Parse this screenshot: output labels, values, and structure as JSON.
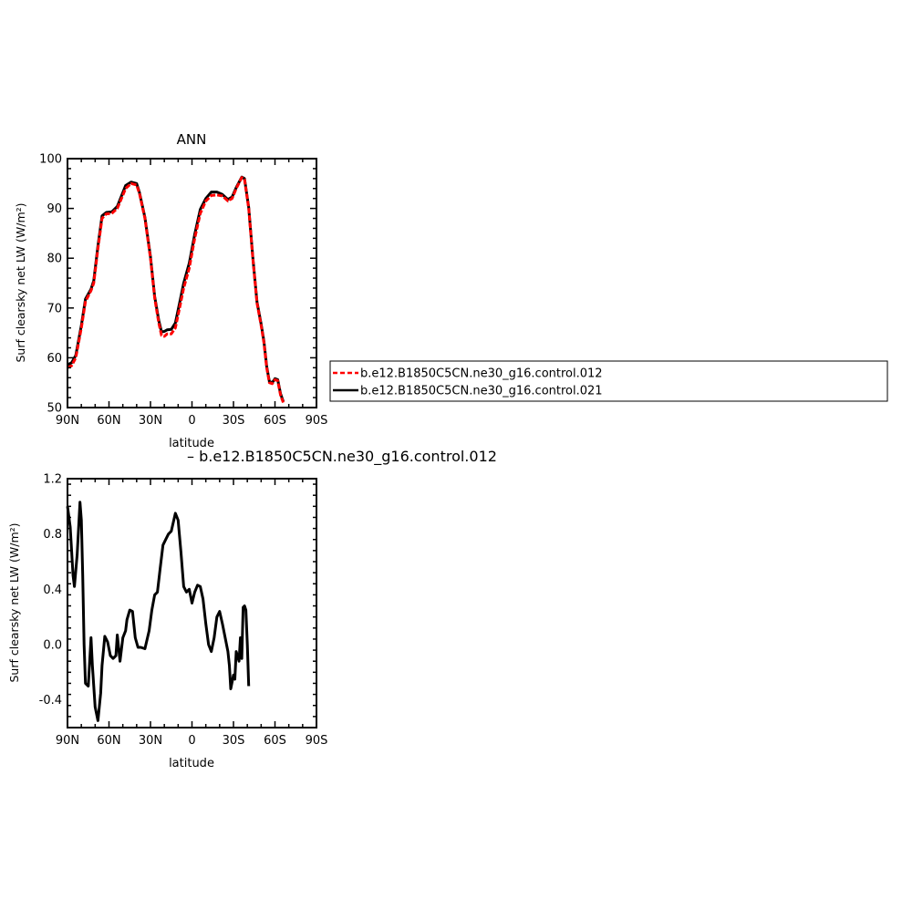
{
  "chart_data": [
    {
      "type": "line",
      "title": "ANN",
      "xlabel": "latitude",
      "ylabel": "Surf clearsky net LW (W/m²)",
      "xlim": [
        90,
        -90
      ],
      "ylim": [
        50,
        100
      ],
      "x_ticks": [
        {
          "value": 90,
          "label": "90N"
        },
        {
          "value": 60,
          "label": "60N"
        },
        {
          "value": 30,
          "label": "30N"
        },
        {
          "value": 0,
          "label": "0"
        },
        {
          "value": -30,
          "label": "30S"
        },
        {
          "value": -60,
          "label": "60S"
        },
        {
          "value": -90,
          "label": "90S"
        }
      ],
      "y_ticks": [
        {
          "value": 50,
          "label": "50"
        },
        {
          "value": 60,
          "label": "60"
        },
        {
          "value": 70,
          "label": "70"
        },
        {
          "value": 80,
          "label": "80"
        },
        {
          "value": 90,
          "label": "90"
        },
        {
          "value": 100,
          "label": "100"
        }
      ],
      "legend_position": "right, outside the plot",
      "series": [
        {
          "name": "b.e12.B1850C5CN.ne30_g16.control.012",
          "color": "#ff0000",
          "dash": "dashed",
          "points": [
            [
              90,
              58
            ],
            [
              87,
              58.4
            ],
            [
              84,
              60
            ],
            [
              80,
              66
            ],
            [
              77,
              71.3
            ],
            [
              73,
              73.5
            ],
            [
              71,
              75
            ],
            [
              68,
              82
            ],
            [
              65,
              88
            ],
            [
              62,
              88.9
            ],
            [
              58,
              89
            ],
            [
              54,
              90
            ],
            [
              51,
              92
            ],
            [
              48,
              94
            ],
            [
              44,
              95
            ],
            [
              40,
              94.7
            ],
            [
              38,
              93
            ],
            [
              34,
              88
            ],
            [
              30,
              80
            ],
            [
              27,
              72
            ],
            [
              24,
              67
            ],
            [
              22,
              64.5
            ],
            [
              20,
              64.3
            ],
            [
              18,
              64.8
            ],
            [
              15,
              64.8
            ],
            [
              12,
              66
            ],
            [
              9,
              70
            ],
            [
              6,
              74
            ],
            [
              2,
              78
            ],
            [
              -2,
              84
            ],
            [
              -6,
              89
            ],
            [
              -10,
              91.5
            ],
            [
              -14,
              92.6
            ],
            [
              -18,
              92.7
            ],
            [
              -22,
              92.5
            ],
            [
              -26,
              91.5
            ],
            [
              -29,
              92
            ],
            [
              -32,
              94
            ],
            [
              -36,
              96.2
            ],
            [
              -38,
              95.8
            ],
            [
              -41,
              90
            ],
            [
              -44,
              80
            ],
            [
              -47,
              71
            ],
            [
              -50,
              66.5
            ],
            [
              -52,
              63
            ],
            [
              -54,
              58
            ],
            [
              -56,
              55
            ],
            [
              -58,
              54.8
            ],
            [
              -60,
              55.6
            ],
            [
              -62,
              55.4
            ],
            [
              -64,
              52.5
            ],
            [
              -66,
              51
            ]
          ]
        },
        {
          "name": "b.e12.B1850C5CN.ne30_g16.control.021",
          "color": "#000000",
          "dash": "solid",
          "points": [
            [
              90,
              58.6
            ],
            [
              87,
              59
            ],
            [
              84,
              60.5
            ],
            [
              80,
              66.5
            ],
            [
              77,
              71.8
            ],
            [
              73,
              73.8
            ],
            [
              71,
              75.5
            ],
            [
              68,
              82.5
            ],
            [
              65,
              88.5
            ],
            [
              62,
              89.2
            ],
            [
              58,
              89.3
            ],
            [
              54,
              90.4
            ],
            [
              51,
              92.5
            ],
            [
              48,
              94.6
            ],
            [
              44,
              95.3
            ],
            [
              40,
              95
            ],
            [
              38,
              93.2
            ],
            [
              34,
              88.2
            ],
            [
              30,
              80.3
            ],
            [
              27,
              72.3
            ],
            [
              24,
              67.5
            ],
            [
              22,
              65.2
            ],
            [
              20,
              65.3
            ],
            [
              18,
              65.6
            ],
            [
              15,
              65.7
            ],
            [
              12,
              67
            ],
            [
              9,
              71
            ],
            [
              6,
              75
            ],
            [
              2,
              79
            ],
            [
              -2,
              84.8
            ],
            [
              -6,
              89.8
            ],
            [
              -10,
              92
            ],
            [
              -14,
              93.3
            ],
            [
              -18,
              93.3
            ],
            [
              -22,
              92.8
            ],
            [
              -26,
              91.8
            ],
            [
              -29,
              92.3
            ],
            [
              -32,
              94.2
            ],
            [
              -36,
              96.3
            ],
            [
              -38,
              96
            ],
            [
              -41,
              90.2
            ],
            [
              -44,
              80.2
            ],
            [
              -47,
              71.2
            ],
            [
              -50,
              66.8
            ],
            [
              -52,
              63.3
            ],
            [
              -54,
              58.3
            ],
            [
              -56,
              55.2
            ],
            [
              -58,
              55
            ],
            [
              -60,
              55.8
            ],
            [
              -62,
              55.6
            ],
            [
              -64,
              52.8
            ],
            [
              -66,
              51.2
            ]
          ]
        }
      ]
    },
    {
      "type": "line",
      "title": "– b.e12.B1850C5CN.ne30_g16.control.012",
      "xlabel": "latitude",
      "ylabel": "Surf clearsky net LW (W/m²)",
      "xlim": [
        90,
        -90
      ],
      "ylim": [
        -0.6,
        1.2
      ],
      "x_ticks": [
        {
          "value": 90,
          "label": "90N"
        },
        {
          "value": 60,
          "label": "60N"
        },
        {
          "value": 30,
          "label": "30N"
        },
        {
          "value": 0,
          "label": "0"
        },
        {
          "value": -30,
          "label": "30S"
        },
        {
          "value": -60,
          "label": "60S"
        },
        {
          "value": -90,
          "label": "90S"
        }
      ],
      "y_ticks": [
        {
          "value": -0.4,
          "label": "-0.4"
        },
        {
          "value": 0.0,
          "label": "0.0"
        },
        {
          "value": 0.4,
          "label": "0.4"
        },
        {
          "value": 0.8,
          "label": "0.8"
        },
        {
          "value": 1.2,
          "label": "1.2"
        }
      ],
      "series": [
        {
          "color": "#000000",
          "dash": "solid",
          "points": [
            [
              90,
              1.0
            ],
            [
              88,
              0.85
            ],
            [
              86,
              0.5
            ],
            [
              85,
              0.42
            ],
            [
              83,
              0.65
            ],
            [
              81,
              1.03
            ],
            [
              80,
              0.9
            ],
            [
              79,
              0.5
            ],
            [
              78,
              0.0
            ],
            [
              77,
              -0.28
            ],
            [
              75,
              -0.3
            ],
            [
              73,
              0.05
            ],
            [
              72,
              -0.15
            ],
            [
              70,
              -0.45
            ],
            [
              68,
              -0.55
            ],
            [
              66,
              -0.35
            ],
            [
              65,
              -0.15
            ],
            [
              63,
              0.06
            ],
            [
              61,
              0.02
            ],
            [
              59,
              -0.08
            ],
            [
              57,
              -0.1
            ],
            [
              55,
              -0.08
            ],
            [
              54,
              0.07
            ],
            [
              52,
              -0.12
            ],
            [
              50,
              0.05
            ],
            [
              48,
              0.1
            ],
            [
              47,
              0.18
            ],
            [
              45,
              0.25
            ],
            [
              43,
              0.24
            ],
            [
              41,
              0.05
            ],
            [
              39,
              -0.02
            ],
            [
              37,
              -0.02
            ],
            [
              34,
              -0.03
            ],
            [
              31,
              0.1
            ],
            [
              29,
              0.25
            ],
            [
              27,
              0.36
            ],
            [
              25,
              0.38
            ],
            [
              23,
              0.55
            ],
            [
              21,
              0.72
            ],
            [
              19,
              0.76
            ],
            [
              17,
              0.8
            ],
            [
              15,
              0.82
            ],
            [
              12,
              0.95
            ],
            [
              10,
              0.9
            ],
            [
              8,
              0.67
            ],
            [
              6,
              0.42
            ],
            [
              4,
              0.38
            ],
            [
              2,
              0.4
            ],
            [
              0,
              0.3
            ],
            [
              -2,
              0.38
            ],
            [
              -4,
              0.43
            ],
            [
              -6,
              0.42
            ],
            [
              -8,
              0.33
            ],
            [
              -10,
              0.15
            ],
            [
              -12,
              0.0
            ],
            [
              -14,
              -0.05
            ],
            [
              -16,
              0.05
            ],
            [
              -18,
              0.2
            ],
            [
              -20,
              0.24
            ],
            [
              -22,
              0.15
            ],
            [
              -24,
              0.05
            ],
            [
              -26,
              -0.05
            ],
            [
              -27,
              -0.15
            ],
            [
              -28,
              -0.32
            ],
            [
              -30,
              -0.22
            ],
            [
              -31,
              -0.25
            ],
            [
              -32,
              -0.05
            ],
            [
              -34,
              -0.12
            ],
            [
              -35,
              0.05
            ],
            [
              -36,
              -0.1
            ],
            [
              -37,
              0.27
            ],
            [
              -38,
              0.28
            ],
            [
              -39,
              0.25
            ],
            [
              -40,
              0.0
            ],
            [
              -41,
              -0.3
            ]
          ]
        }
      ]
    }
  ]
}
